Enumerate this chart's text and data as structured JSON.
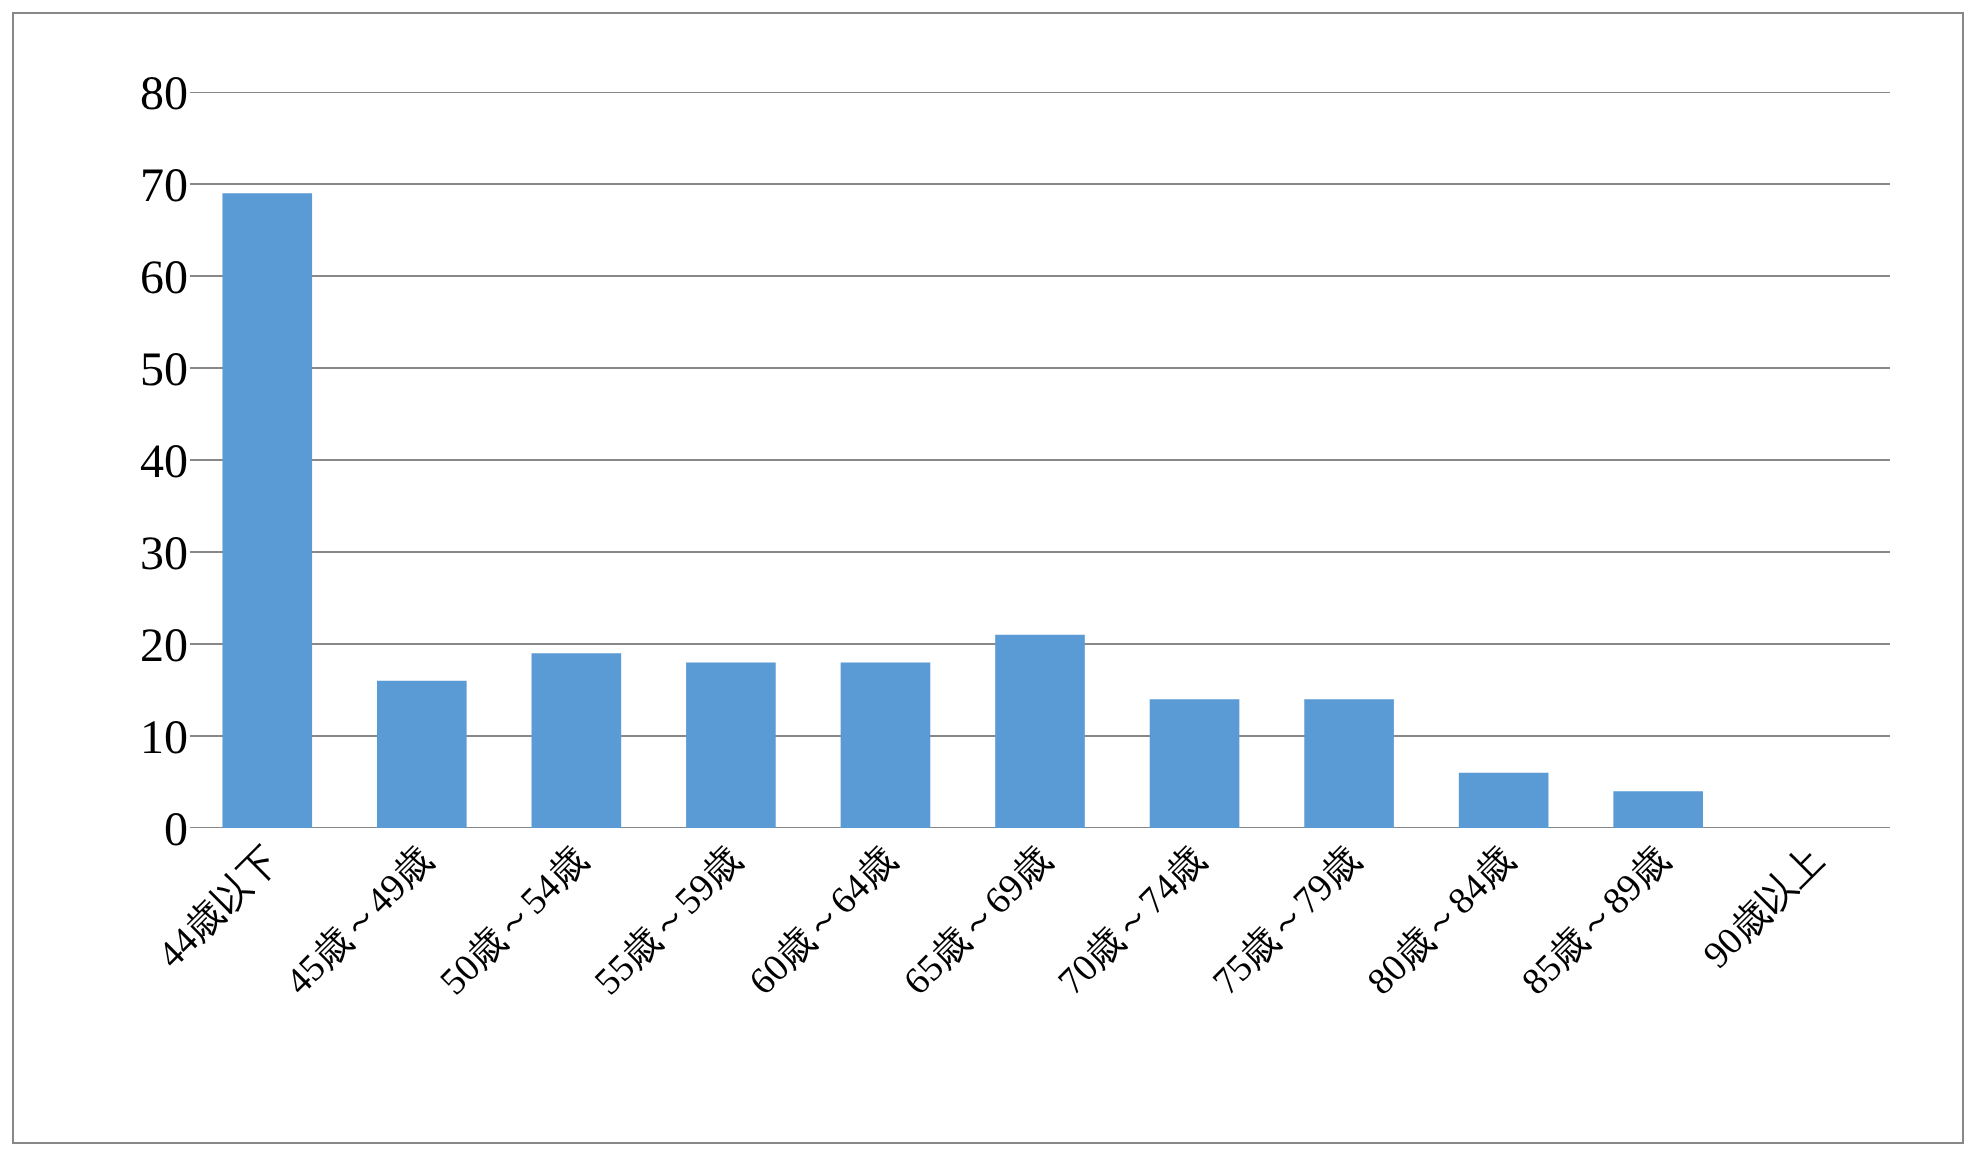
{
  "chart_data": {
    "type": "bar",
    "categories": [
      "44歳以下",
      "45歳～49歳",
      "50歳～54歳",
      "55歳～59歳",
      "60歳～64歳",
      "65歳～69歳",
      "70歳～74歳",
      "75歳～79歳",
      "80歳～84歳",
      "85歳～89歳",
      "90歳以上"
    ],
    "values": [
      69,
      16,
      19,
      18,
      18,
      21,
      14,
      14,
      6,
      4,
      0
    ],
    "color": "#5b9bd5",
    "ylim": [
      0,
      80
    ],
    "yticks": [
      0,
      10,
      20,
      30,
      40,
      50,
      60,
      70,
      80
    ],
    "grid": "y"
  }
}
